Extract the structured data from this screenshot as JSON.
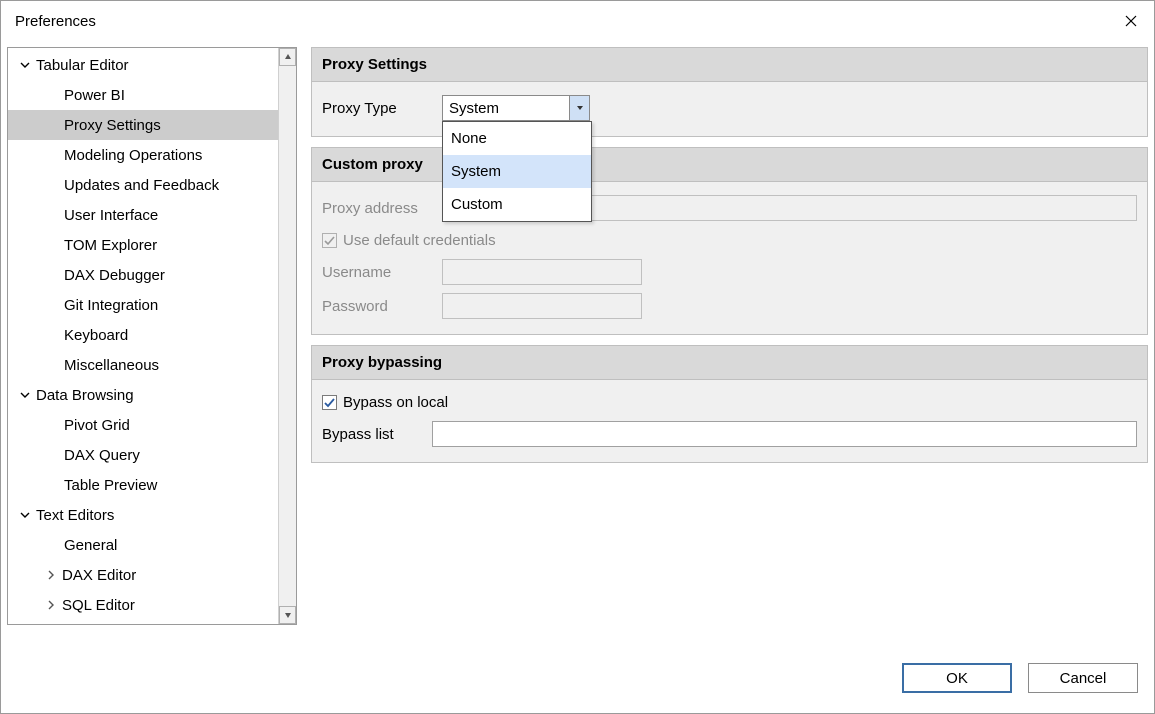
{
  "window": {
    "title": "Preferences",
    "ok_label": "OK",
    "cancel_label": "Cancel"
  },
  "colors": {
    "section_head_bg": "#d9d9d9",
    "section_body_bg": "#f0f0f0",
    "selected_row_bg": "#cccccc",
    "dropdown_highlight": "#d3e4fa",
    "primary_border": "#3a6ea5"
  },
  "sidebar": {
    "groups": [
      {
        "label": "Tabular Editor",
        "expanded": true,
        "items": [
          {
            "label": "Power BI"
          },
          {
            "label": "Proxy Settings",
            "selected": true
          },
          {
            "label": "Modeling Operations"
          },
          {
            "label": "Updates and Feedback"
          },
          {
            "label": "User Interface"
          },
          {
            "label": "TOM Explorer"
          },
          {
            "label": "DAX Debugger"
          },
          {
            "label": "Git Integration"
          },
          {
            "label": "Keyboard"
          },
          {
            "label": "Miscellaneous"
          }
        ]
      },
      {
        "label": "Data Browsing",
        "expanded": true,
        "items": [
          {
            "label": "Pivot Grid"
          },
          {
            "label": "DAX Query"
          },
          {
            "label": "Table Preview"
          }
        ]
      },
      {
        "label": "Text Editors",
        "expanded": true,
        "items": [
          {
            "label": "General"
          },
          {
            "label": "DAX Editor",
            "expandable": true
          },
          {
            "label": "SQL Editor",
            "expandable": true
          }
        ]
      }
    ]
  },
  "proxy_settings": {
    "section_title": "Proxy Settings",
    "type_label": "Proxy Type",
    "type_value": "System",
    "type_options": [
      "None",
      "System",
      "Custom"
    ],
    "type_highlight_index": 1
  },
  "custom_proxy": {
    "section_title_visible": "Custom proxy",
    "address_label": "Proxy address",
    "address_value": "",
    "use_default_credentials_label": "Use default credentials",
    "use_default_credentials_checked": true,
    "username_label": "Username",
    "username_value": "",
    "password_label": "Password",
    "password_value": "",
    "disabled": true
  },
  "proxy_bypass": {
    "section_title": "Proxy bypassing",
    "bypass_local_label": "Bypass on local",
    "bypass_local_checked": true,
    "bypass_list_label": "Bypass list",
    "bypass_list_value": ""
  }
}
